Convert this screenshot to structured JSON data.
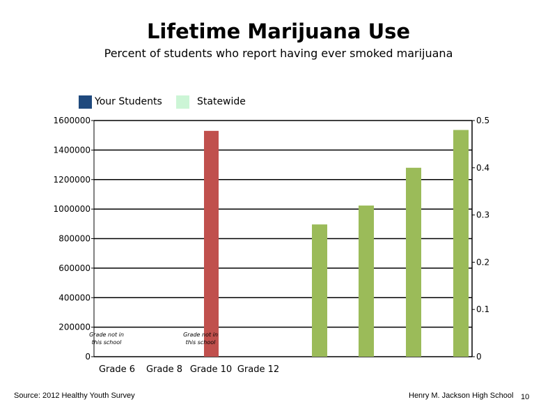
{
  "chart_data": {
    "type": "bar",
    "title": "Lifetime Marijuana Use",
    "subtitle": "Percent of students who report having ever smoked marijuana",
    "categories": [
      "Grade 6",
      "Grade 8",
      "Grade 10",
      "Grade 12"
    ],
    "legend": [
      {
        "name": "Your Students",
        "color": "#1f497d"
      },
      {
        "name": "Statewide",
        "color": "#ccf5d6"
      }
    ],
    "left_axis": {
      "ylim": [
        0,
        1600000
      ],
      "ticks": [
        "0",
        "200000",
        "400000",
        "600000",
        "800000",
        "1000000",
        "1200000",
        "1400000",
        "1600000"
      ]
    },
    "right_axis": {
      "ylim": [
        0,
        0.5
      ],
      "ticks": [
        "0",
        "0.1",
        "0.2",
        "0.3",
        "0.4",
        "0.5"
      ]
    },
    "left_bars": [
      {
        "category": "Grade 10",
        "value": 1530000,
        "color": "#c0504d"
      }
    ],
    "right_bars": {
      "color": "#9bbb59",
      "values": [
        0.28,
        0.32,
        0.4,
        0.48
      ]
    },
    "annotations": [
      {
        "category": "Grade 6",
        "lines": [
          "Grade not in",
          "this school"
        ]
      },
      {
        "category": "Grade 10",
        "lines": [
          "Grade not in",
          "this school"
        ]
      }
    ],
    "grid": true,
    "legend_position": "top-left"
  },
  "footer": {
    "source": "Source: 2012 Healthy Youth Survey",
    "school": "Henry M. Jackson High School",
    "page": "10"
  }
}
